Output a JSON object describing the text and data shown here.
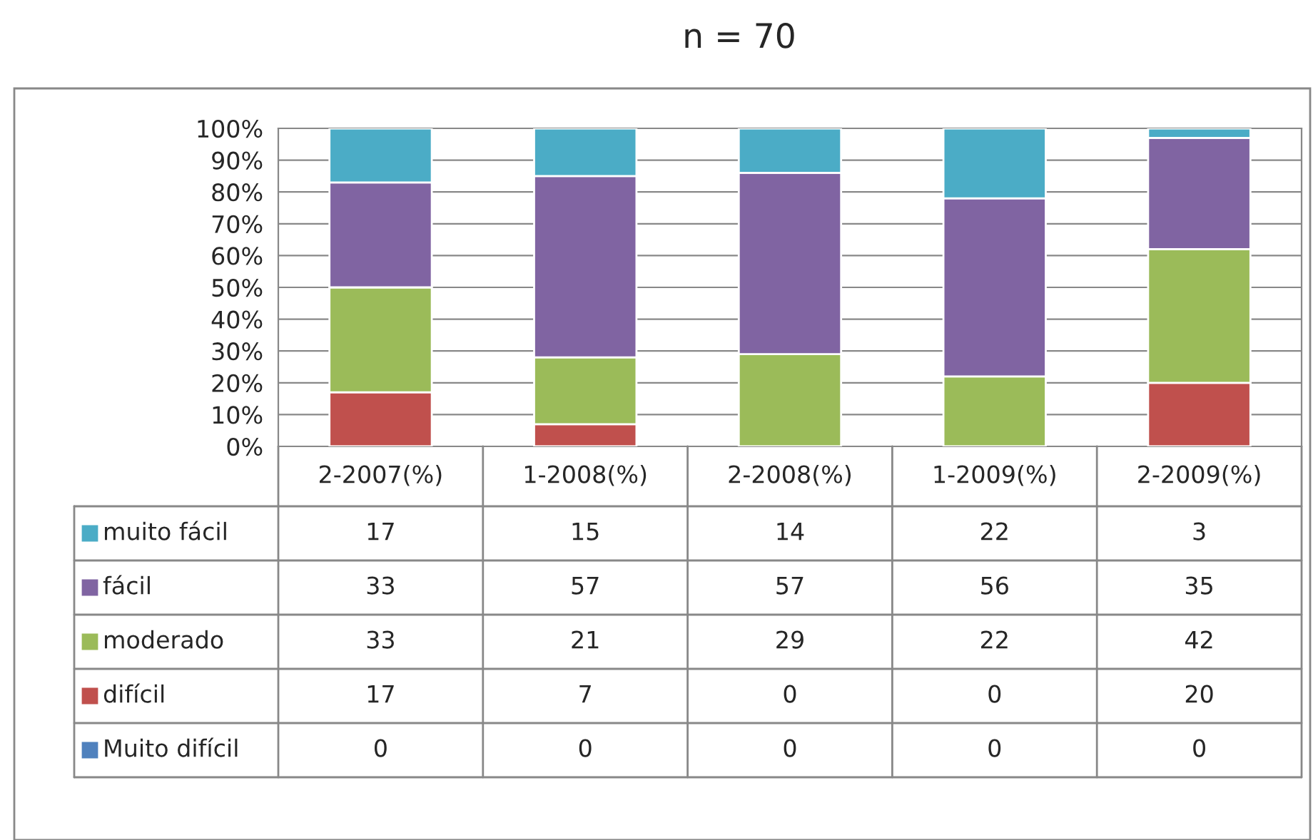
{
  "chart_data": {
    "type": "bar",
    "title": "n = 70",
    "stacked": true,
    "data_labels": true,
    "legend": "left",
    "grid": "y",
    "categories": [
      "2-2007(%)",
      "1-2008(%)",
      "2-2008(%)",
      "1-2009(%)",
      "2-2009(%)"
    ],
    "ylim": [
      0,
      100
    ],
    "yticks": [
      {
        "value": 0,
        "label": "0%"
      },
      {
        "value": 10,
        "label": "10%"
      },
      {
        "value": 20,
        "label": "20%"
      },
      {
        "value": 30,
        "label": "30%"
      },
      {
        "value": 40,
        "label": "40%"
      },
      {
        "value": 50,
        "label": "50%"
      },
      {
        "value": 60,
        "label": "60%"
      },
      {
        "value": 70,
        "label": "70%"
      },
      {
        "value": 80,
        "label": "80%"
      },
      {
        "value": 90,
        "label": "90%"
      },
      {
        "value": 100,
        "label": "100%"
      }
    ],
    "series": [
      {
        "name": "Muito difícil",
        "color": "#4f81bd",
        "values": [
          0,
          0,
          0,
          0,
          0
        ]
      },
      {
        "name": "difícil",
        "color": "#c0504d",
        "values": [
          17,
          7,
          0,
          0,
          20
        ]
      },
      {
        "name": "moderado",
        "color": "#9bbb59",
        "values": [
          33,
          21,
          29,
          22,
          42
        ]
      },
      {
        "name": "fácil",
        "color": "#8064a2",
        "values": [
          33,
          57,
          57,
          56,
          35
        ]
      },
      {
        "name": "muito fácil",
        "color": "#4bacc6",
        "values": [
          17,
          15,
          14,
          22,
          3
        ]
      }
    ]
  }
}
